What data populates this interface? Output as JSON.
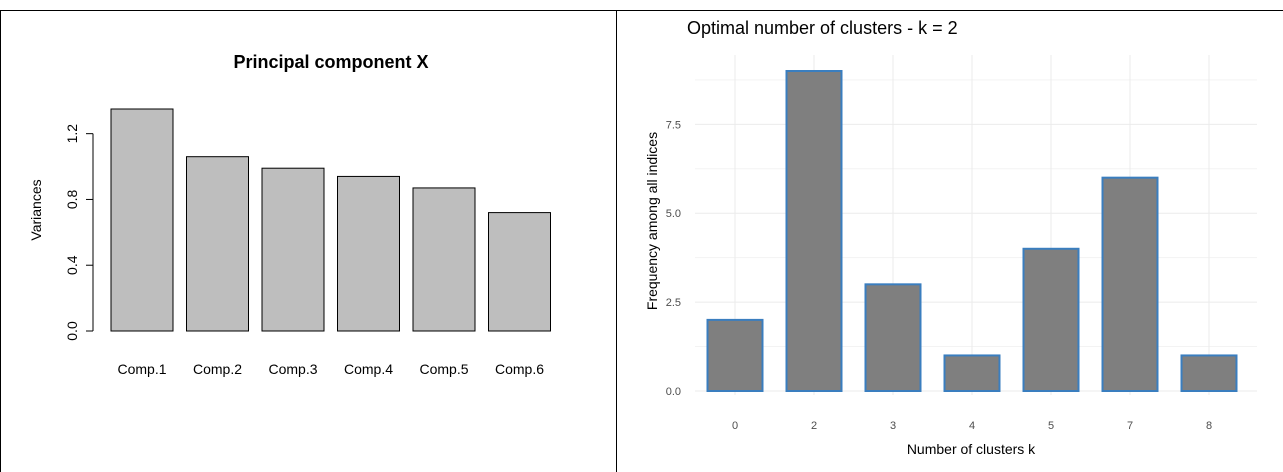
{
  "chart_data": [
    {
      "type": "bar",
      "title": "Principal component X",
      "xlabel": "",
      "ylabel": "Variances",
      "categories": [
        "Comp.1",
        "Comp.2",
        "Comp.3",
        "Comp.4",
        "Comp.5",
        "Comp.6"
      ],
      "values": [
        1.35,
        1.06,
        0.99,
        0.94,
        0.87,
        0.72
      ],
      "yticks": [
        "0.0",
        "0.4",
        "0.8",
        "1.2"
      ],
      "ytick_values": [
        0,
        0.4,
        0.8,
        1.2
      ],
      "ylim": [
        0,
        1.35
      ],
      "grid": false,
      "colors": {
        "bar_fill": "#bebebe",
        "bar_stroke": "#000000"
      }
    },
    {
      "type": "bar",
      "title": "Optimal number of clusters - k = 2",
      "xlabel": "Number of clusters k",
      "ylabel": "Frequency among all indices",
      "categories": [
        "0",
        "2",
        "3",
        "4",
        "5",
        "7",
        "8"
      ],
      "values": [
        2,
        9,
        3,
        1,
        4,
        6,
        1
      ],
      "yticks": [
        "0.0",
        "2.5",
        "5.0",
        "7.5"
      ],
      "ytick_values": [
        0,
        2.5,
        5,
        7.5
      ],
      "ylim": [
        0,
        9.45
      ],
      "grid": true,
      "colors": {
        "bar_fill": "#7f7f7f",
        "bar_stroke": "#3a7ebf",
        "grid": "#ebebeb"
      }
    }
  ]
}
